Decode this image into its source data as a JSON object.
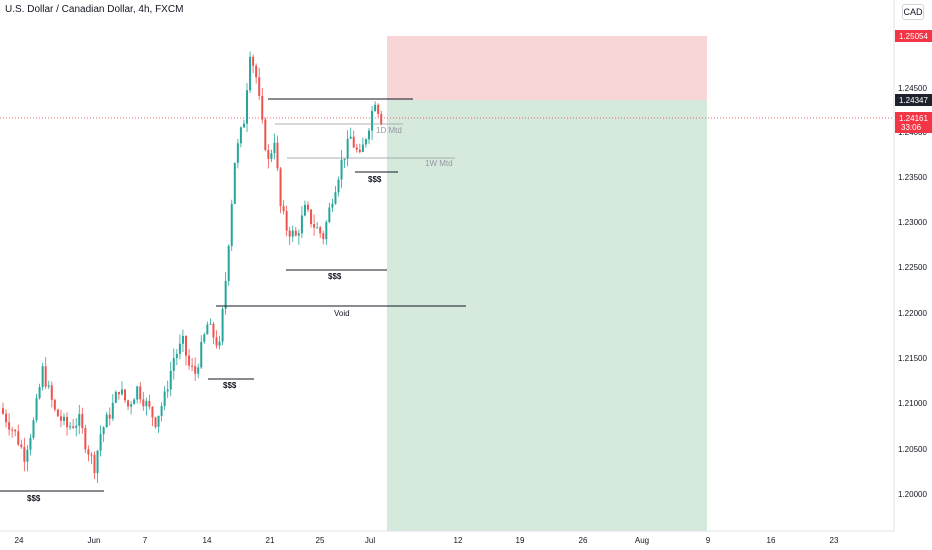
{
  "header": {
    "title": "U.S. Dollar / Canadian Dollar, 4h, FXCM",
    "currency_button": "CAD"
  },
  "colors": {
    "up": "#26a69a",
    "down": "#ef5350",
    "stop_zone": "#f7cfd1",
    "target_zone": "#cfe5d7",
    "price_tag": "#f23645",
    "current_tag": "#1e222d",
    "level_line": "#131722",
    "mtd_line": "#9598a1"
  },
  "price_axis": {
    "ticks": [
      "1.24500",
      "1.24000",
      "1.23500",
      "1.23000",
      "1.22500",
      "1.22000",
      "1.21500",
      "1.21000",
      "1.20500",
      "1.20000"
    ],
    "tags": [
      {
        "id": "stop",
        "label": "1.25054",
        "price": 1.25054,
        "color": "#f23645"
      },
      {
        "id": "entry",
        "label": "1.24347",
        "price": 1.24347,
        "color": "#1e222d"
      },
      {
        "id": "last",
        "label": "1.24161",
        "sub": "33:06",
        "price": 1.24161,
        "color": "#f23645"
      }
    ]
  },
  "time_axis": {
    "ticks": [
      "24",
      "Jun",
      "7",
      "14",
      "21",
      "25",
      "Jul",
      "12",
      "19",
      "26",
      "Aug",
      "9",
      "16",
      "23"
    ]
  },
  "annotations": {
    "sss_labels": [
      "$$$",
      "$$$",
      "$$$",
      "$$$"
    ],
    "void_label": "Void",
    "mtd_1d": "1D Mtd",
    "mtd_1w": "1W Mtd"
  },
  "levels": {
    "sss_1": 1.2003,
    "sss_2": 1.2128,
    "sss_3": 1.2248,
    "sss_4": 1.2357,
    "void": 1.2208,
    "mtd_1d": 1.2415,
    "mtd_1w": 1.2372,
    "high_line": 1.2436
  },
  "chart_data": {
    "type": "candlestick",
    "symbol": "U.S. Dollar / Canadian Dollar, 4h, FXCM",
    "ylim": [
      1.1965,
      1.2535
    ],
    "trade": {
      "side": "short",
      "entry": 1.24347,
      "stop": 1.25054,
      "target": 1.1965,
      "last": 1.24161
    },
    "waypoints": [
      [
        0,
        1.209
      ],
      [
        4,
        1.2068
      ],
      [
        7,
        1.2044
      ],
      [
        10,
        1.208
      ],
      [
        13,
        1.2138
      ],
      [
        17,
        1.2092
      ],
      [
        21,
        1.2075
      ],
      [
        25,
        1.2082
      ],
      [
        27,
        1.2058
      ],
      [
        30,
        1.2032
      ],
      [
        32,
        1.2068
      ],
      [
        35,
        1.209
      ],
      [
        38,
        1.2118
      ],
      [
        41,
        1.2098
      ],
      [
        44,
        1.2118
      ],
      [
        47,
        1.21
      ],
      [
        50,
        1.2082
      ],
      [
        53,
        1.2108
      ],
      [
        56,
        1.2152
      ],
      [
        59,
        1.2168
      ],
      [
        61,
        1.2142
      ],
      [
        63,
        1.2135
      ],
      [
        67,
        1.2188
      ],
      [
        69,
        1.2176
      ],
      [
        71,
        1.2163
      ],
      [
        73,
        1.2238
      ],
      [
        76,
        1.237
      ],
      [
        79,
        1.2415
      ],
      [
        81,
        1.2492
      ],
      [
        83,
        1.2462
      ],
      [
        85,
        1.2408
      ],
      [
        87,
        1.2368
      ],
      [
        89,
        1.2395
      ],
      [
        91,
        1.2318
      ],
      [
        93,
        1.2295
      ],
      [
        96,
        1.2285
      ],
      [
        99,
        1.2315
      ],
      [
        102,
        1.2298
      ],
      [
        105,
        1.2286
      ],
      [
        108,
        1.233
      ],
      [
        111,
        1.2368
      ],
      [
        114,
        1.2395
      ],
      [
        117,
        1.2372
      ],
      [
        120,
        1.241
      ],
      [
        122,
        1.2438
      ],
      [
        124,
        1.2416
      ]
    ]
  }
}
